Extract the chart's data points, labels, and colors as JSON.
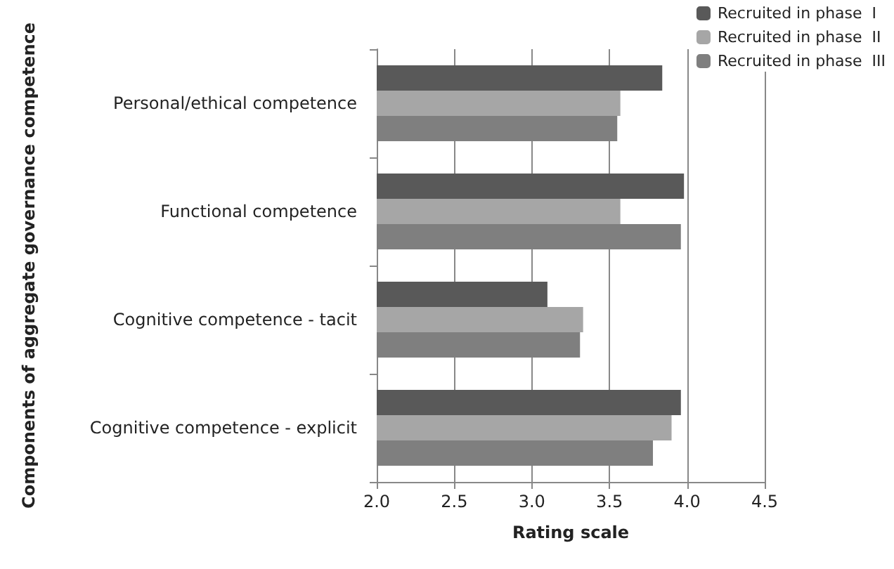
{
  "chart_data": {
    "type": "bar",
    "orientation": "horizontal",
    "xlabel": "Rating scale",
    "ylabel": "Components of aggregate governance competence",
    "categories": [
      "Personal/ethical competence",
      "Functional competence",
      "Cognitive competence - tacit",
      "Cognitive competence - explicit"
    ],
    "series": [
      {
        "name": "Recruited in phase  I",
        "color": "#595959",
        "values": [
          3.84,
          3.98,
          3.1,
          3.96
        ]
      },
      {
        "name": "Recruited in phase  II",
        "color": "#a6a6a6",
        "values": [
          3.57,
          3.57,
          3.33,
          3.9
        ]
      },
      {
        "name": "Recruited in phase  III",
        "color": "#7f7f7f",
        "values": [
          3.55,
          3.96,
          3.31,
          3.78
        ]
      }
    ],
    "xlim": [
      2,
      4.5
    ],
    "xticks": [
      {
        "value": 2,
        "label": "2.0"
      },
      2.5,
      {
        "value": 3,
        "label": "3.0"
      },
      3.5,
      {
        "value": 4,
        "label": "4.0"
      },
      4.5
    ],
    "grid": "x",
    "legend": "top right"
  }
}
